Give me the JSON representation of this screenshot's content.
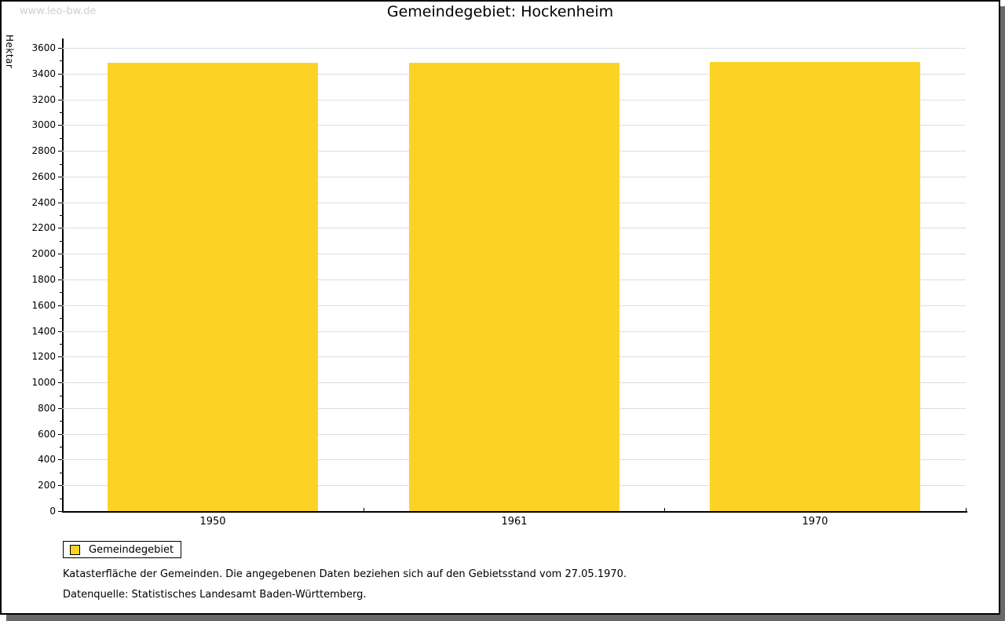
{
  "watermark": "www.leo-bw.de",
  "title": "Gemeindegebiet: Hockenheim",
  "chart_data": {
    "type": "bar",
    "title": "Gemeindegebiet: Hockenheim",
    "categories": [
      "1950",
      "1961",
      "1970"
    ],
    "series": [
      {
        "name": "Gemeindegebiet",
        "values": [
          3485,
          3485,
          3490
        ]
      }
    ],
    "xlabel": "",
    "ylabel": "Hektar",
    "ylim": [
      0,
      3600
    ],
    "y_major_step": 200,
    "y_minor_step": 100,
    "grid": true,
    "legend_position": "bottom-left",
    "bar_color": "#FCD324"
  },
  "legend": {
    "label": "Gemeindegebiet",
    "swatch_color": "#FCD324"
  },
  "footnotes": [
    "Katasterfläche der Gemeinden. Die angegebenen Daten beziehen sich auf den Gebietsstand vom 27.05.1970.",
    "Datenquelle: Statistisches Landesamt Baden-Württemberg."
  ],
  "colors": {
    "bar": "#FCD324",
    "grid": "#DDDDDD",
    "axis": "#000000",
    "watermark": "#CFCFCF",
    "frame_shadow": "#696969"
  }
}
